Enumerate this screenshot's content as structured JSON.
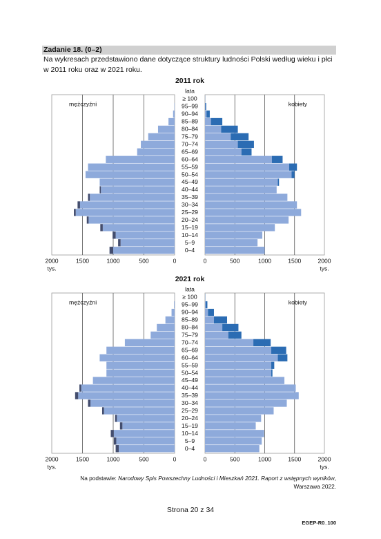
{
  "header": {
    "task": "Zadanie 18. (0–2)"
  },
  "intro": [
    "Na wykresach przedstawiono dane dotyczące struktury ludności Polski według wieku i płci",
    "w 2011 roku oraz w 2021 roku."
  ],
  "source": [
    "Na podstawie: ",
    "Narodowy Spis Powszechny Ludności i Mieszkań 2021. Raport z wstępnych wyników",
    ",",
    "Warszawa 2022."
  ],
  "footer": {
    "page": "Strona 20 z 34",
    "code": "EGEP-R0_100"
  },
  "chart_data": [
    {
      "type": "pyramid",
      "title": "2011 rok",
      "category_label": "lata",
      "x_unit": "tys.",
      "categories": [
        "≥ 100",
        "95–99",
        "90–94",
        "85–89",
        "80–84",
        "75–79",
        "70–74",
        "65–69",
        "60–64",
        "55–59",
        "50–54",
        "45–49",
        "40–44",
        "35–39",
        "30–34",
        "25–29",
        "20–24",
        "15–19",
        "10–14",
        "5–9",
        "0–4"
      ],
      "series": [
        {
          "name": "mężczyźni",
          "color": "#8eaadb",
          "excess_color": "#434d6e",
          "values": [
            0,
            5,
            25,
            100,
            270,
            430,
            550,
            610,
            1120,
            1410,
            1450,
            1220,
            1220,
            1410,
            1580,
            1640,
            1430,
            1210,
            1010,
            920,
            1060
          ]
        },
        {
          "name": "kobiety",
          "color": "#8eaadb",
          "excess_color": "#2b6cb3",
          "values": [
            2,
            20,
            80,
            290,
            550,
            730,
            820,
            780,
            1300,
            1540,
            1500,
            1240,
            1200,
            1380,
            1540,
            1610,
            1400,
            1170,
            960,
            880,
            1000
          ]
        }
      ],
      "xlim": [
        0,
        2000
      ],
      "xticks": [
        0,
        500,
        1000,
        1500,
        2000
      ],
      "grid": true
    },
    {
      "type": "pyramid",
      "title": "2021 rok",
      "category_label": "lata",
      "x_unit": "tys.",
      "categories": [
        "≥ 100",
        "95–99",
        "90–94",
        "85–89",
        "80–84",
        "75–79",
        "70–74",
        "65–69",
        "60–64",
        "55–59",
        "50–54",
        "45–49",
        "40–44",
        "35–39",
        "30–34",
        "25–29",
        "20–24",
        "15–19",
        "10–14",
        "5–9",
        "0–4"
      ],
      "series": [
        {
          "name": "mężczyźni",
          "color": "#8eaadb",
          "excess_color": "#434d6e",
          "values": [
            1,
            10,
            50,
            150,
            290,
            390,
            810,
            1110,
            1220,
            1110,
            1110,
            1330,
            1550,
            1620,
            1410,
            1180,
            970,
            890,
            1040,
            990,
            960
          ]
        },
        {
          "name": "kobiety",
          "color": "#8eaadb",
          "excess_color": "#2b6cb3",
          "values": [
            4,
            40,
            150,
            370,
            560,
            610,
            1100,
            1360,
            1380,
            1160,
            1130,
            1330,
            1520,
            1570,
            1370,
            1150,
            940,
            850,
            990,
            950,
            910
          ]
        }
      ],
      "xlim": [
        0,
        2000
      ],
      "xticks": [
        0,
        500,
        1000,
        1500,
        2000
      ],
      "grid": true
    }
  ]
}
